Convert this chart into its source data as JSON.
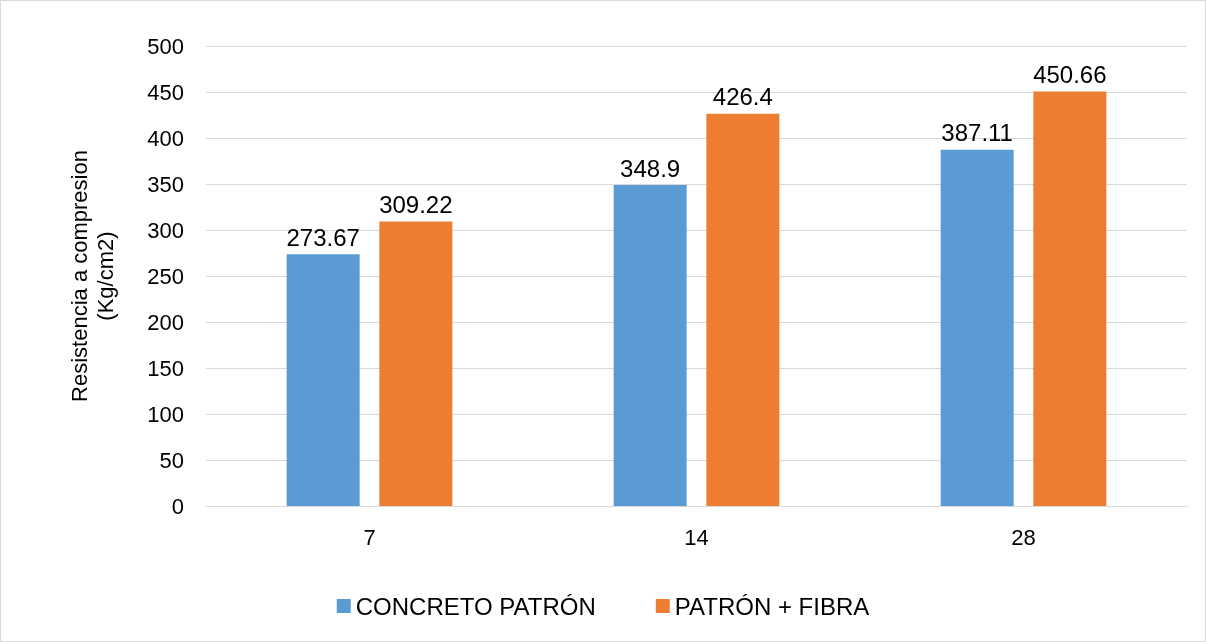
{
  "chart_data": {
    "type": "bar",
    "ylabel": "Resistencia a compresion\n(Kg/cm2)",
    "categories": [
      "7",
      "14",
      "28"
    ],
    "series": [
      {
        "name": "CONCRETO PATRÓN",
        "color": "#5b9bd5",
        "values": [
          273.67,
          348.9,
          387.11
        ]
      },
      {
        "name": "PATRÓN + FIBRA",
        "color": "#ed7d31",
        "values": [
          309.22,
          426.4,
          450.66
        ]
      }
    ],
    "ylim": [
      0,
      500
    ],
    "yticks": [
      0,
      50,
      100,
      150,
      200,
      250,
      300,
      350,
      400,
      450,
      500
    ],
    "grid": "y",
    "legend": "bottom",
    "data_labels": true
  }
}
